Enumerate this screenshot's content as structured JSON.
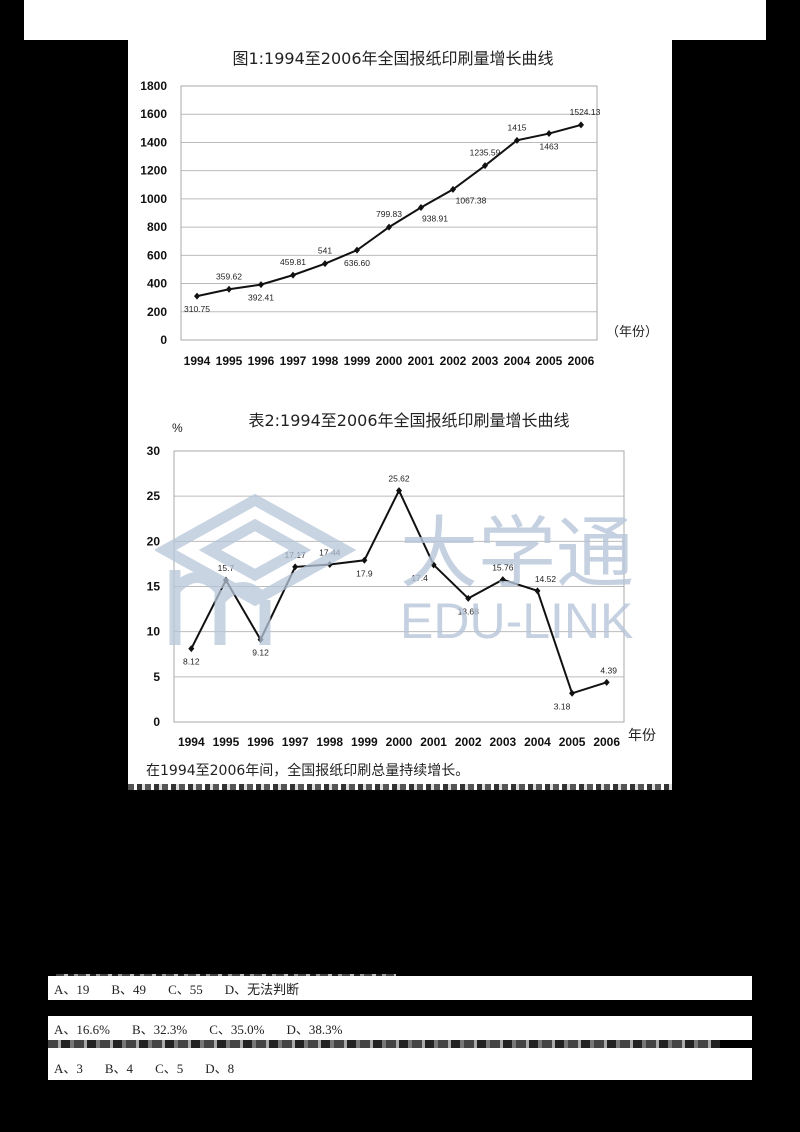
{
  "chart_data": [
    {
      "type": "line",
      "title": "图1:1994至2006年全国报纸印刷量增长曲线",
      "xlabel": "（年份）",
      "ylabel": "",
      "categories": [
        "1994",
        "1995",
        "1996",
        "1997",
        "1998",
        "1999",
        "2000",
        "2001",
        "2002",
        "2003",
        "2004",
        "2005",
        "2006"
      ],
      "values": [
        310.75,
        359.62,
        392.41,
        459.81,
        541,
        636.6,
        799.83,
        938.91,
        1067.38,
        1235.59,
        1415,
        1463,
        1524.13
      ],
      "data_labels": [
        "310.75",
        "359.62",
        "392.41",
        "459.81",
        "541",
        "636.60",
        "799.83",
        "938.91",
        "1067.38",
        "1235.59",
        "1415",
        "1463",
        "1524.13"
      ],
      "ylim": [
        0,
        1800
      ],
      "yticks": [
        0,
        200,
        400,
        600,
        800,
        1000,
        1200,
        1400,
        1600,
        1800
      ],
      "grid": true,
      "legend": null
    },
    {
      "type": "line",
      "title": "表2:1994至2006年全国报纸印刷量增长曲线",
      "xlabel": "年份",
      "ylabel": "%",
      "categories": [
        "1994",
        "1995",
        "1996",
        "1997",
        "1998",
        "1999",
        "2000",
        "2001",
        "2002",
        "2003",
        "2004",
        "2005",
        "2006"
      ],
      "values": [
        8.12,
        15.7,
        9.12,
        17.17,
        17.44,
        17.9,
        25.62,
        17.4,
        13.68,
        15.76,
        14.52,
        3.18,
        4.39
      ],
      "data_labels": [
        "8.12",
        "15.7",
        "9.12",
        "17.17",
        "17.44",
        "17.9",
        "25.62",
        "17.4",
        "13.68",
        "15.76",
        "14.52",
        "3.18",
        "4.39"
      ],
      "ylim": [
        0,
        30
      ],
      "yticks": [
        0,
        5,
        10,
        15,
        20,
        25,
        30
      ],
      "grid": true,
      "legend": null
    }
  ],
  "charts": {
    "c1": {
      "title": "图1:1994至2006年全国报纸印刷量增长曲线",
      "xunit": "（年份）"
    },
    "c2": {
      "title": "表2:1994至2006年全国报纸印刷量增长曲线",
      "yunit": "%",
      "xunit": "年份"
    }
  },
  "caption": "在1994至2006年间，全国报纸印刷总量持续增长。",
  "watermark": {
    "cn": "大学通",
    "en": "EDU-LINK"
  },
  "questions": [
    {
      "options": [
        "A、19",
        "B、49",
        "C、55",
        "D、无法判断"
      ]
    },
    {
      "options": [
        "A、16.6%",
        "B、32.3%",
        "C、35.0%",
        "D、38.3%"
      ]
    },
    {
      "options": [
        "A、3",
        "B、4",
        "C、5",
        "D、8"
      ]
    }
  ]
}
